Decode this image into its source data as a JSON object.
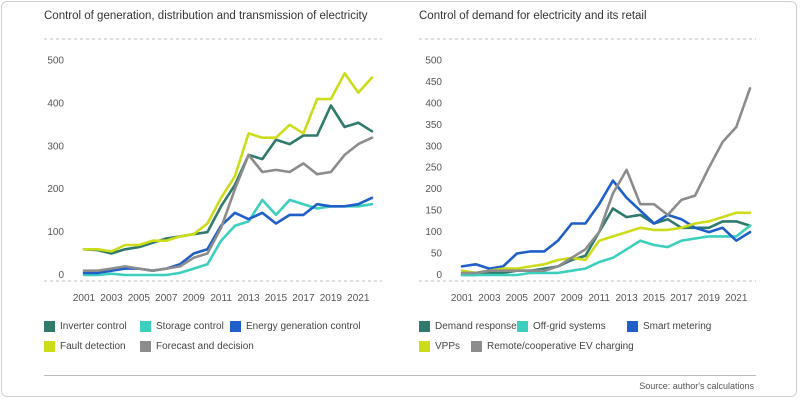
{
  "chart_data": [
    {
      "type": "line",
      "title": "Control of generation, distribution and transmission of electricity",
      "x": [
        2001,
        2002,
        2003,
        2004,
        2005,
        2006,
        2007,
        2008,
        2009,
        2010,
        2011,
        2012,
        2013,
        2014,
        2015,
        2016,
        2017,
        2018,
        2019,
        2020,
        2021,
        2022
      ],
      "ylim": [
        0,
        550
      ],
      "yticks": [
        0,
        100,
        200,
        300,
        400,
        500
      ],
      "xticks": [
        2001,
        2003,
        2005,
        2007,
        2009,
        2011,
        2013,
        2015,
        2017,
        2019,
        2021
      ],
      "series": [
        {
          "name": "Inverter control",
          "color": "#2f7a6c",
          "values": [
            60,
            58,
            50,
            60,
            65,
            75,
            85,
            90,
            95,
            100,
            160,
            210,
            280,
            270,
            315,
            305,
            325,
            325,
            395,
            345,
            355,
            335
          ]
        },
        {
          "name": "Storage control",
          "color": "#3ccfbd",
          "values": [
            0,
            0,
            3,
            0,
            0,
            0,
            0,
            5,
            15,
            25,
            80,
            115,
            125,
            175,
            140,
            175,
            165,
            155,
            160,
            160,
            160,
            165
          ]
        },
        {
          "name": "Energy generation control",
          "color": "#1f5fc7",
          "values": [
            5,
            5,
            10,
            15,
            15,
            10,
            15,
            25,
            50,
            60,
            115,
            145,
            130,
            145,
            120,
            140,
            140,
            165,
            160,
            160,
            165,
            180
          ]
        },
        {
          "name": "Fault detection",
          "color": "#cddc1a",
          "values": [
            60,
            60,
            55,
            70,
            70,
            80,
            80,
            90,
            95,
            120,
            180,
            230,
            330,
            320,
            320,
            350,
            330,
            410,
            410,
            470,
            425,
            460
          ]
        },
        {
          "name": "Forecast and decision",
          "color": "#8c8c8c",
          "values": [
            10,
            10,
            15,
            20,
            15,
            10,
            15,
            20,
            40,
            50,
            110,
            200,
            280,
            240,
            245,
            240,
            260,
            235,
            240,
            280,
            305,
            320
          ]
        }
      ]
    },
    {
      "type": "line",
      "title": "Control of demand for electricity and its retail",
      "x": [
        2001,
        2002,
        2003,
        2004,
        2005,
        2006,
        2007,
        2008,
        2009,
        2010,
        2011,
        2012,
        2013,
        2014,
        2015,
        2016,
        2017,
        2018,
        2019,
        2020,
        2021,
        2022
      ],
      "ylim": [
        0,
        550
      ],
      "yticks": [
        0,
        50,
        100,
        150,
        200,
        250,
        300,
        350,
        400,
        450,
        500
      ],
      "xticks": [
        2001,
        2003,
        2005,
        2007,
        2009,
        2011,
        2013,
        2015,
        2017,
        2019,
        2021
      ],
      "series": [
        {
          "name": "Demand response",
          "color": "#2f7a6c",
          "values": [
            0,
            0,
            5,
            5,
            10,
            10,
            15,
            20,
            35,
            45,
            100,
            155,
            135,
            140,
            120,
            130,
            110,
            110,
            110,
            125,
            125,
            115
          ]
        },
        {
          "name": "Off-grid systems",
          "color": "#3ccfbd",
          "values": [
            0,
            0,
            0,
            0,
            0,
            5,
            5,
            5,
            10,
            15,
            30,
            40,
            60,
            80,
            70,
            65,
            80,
            85,
            90,
            90,
            90,
            115
          ]
        },
        {
          "name": "Smart metering",
          "color": "#1f5fc7",
          "values": [
            20,
            25,
            15,
            20,
            50,
            55,
            55,
            80,
            120,
            120,
            165,
            220,
            180,
            150,
            120,
            140,
            130,
            110,
            100,
            110,
            80,
            100
          ]
        },
        {
          "name": "VPPs",
          "color": "#cddc1a",
          "values": [
            10,
            5,
            10,
            15,
            15,
            20,
            25,
            35,
            40,
            35,
            80,
            90,
            100,
            110,
            105,
            105,
            110,
            120,
            125,
            135,
            145,
            145
          ]
        },
        {
          "name": "Remote/cooperative EV charging",
          "color": "#8c8c8c",
          "values": [
            5,
            5,
            10,
            10,
            10,
            10,
            10,
            20,
            40,
            60,
            100,
            190,
            245,
            165,
            165,
            140,
            175,
            185,
            250,
            310,
            345,
            435
          ]
        }
      ]
    }
  ],
  "source": "Source: author's calculations"
}
